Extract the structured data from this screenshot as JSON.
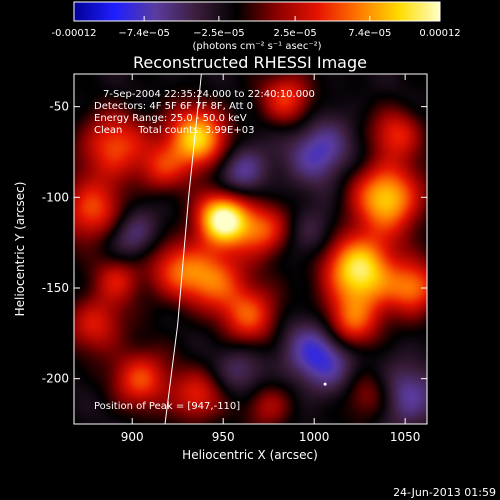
{
  "chart_data": {
    "type": "heatmap",
    "title": "Reconstructed RHESSI Image",
    "xlabel": "Heliocentric X (arcsec)",
    "ylabel": "Heliocentric Y (arcsec)",
    "xlim": [
      868,
      1062
    ],
    "ylim": [
      -225,
      -32
    ],
    "xticks": [
      900,
      950,
      1000,
      1050
    ],
    "yticks": [
      -50,
      -100,
      -150,
      -200
    ],
    "colorbar": {
      "min": -0.00012,
      "max": 0.00012,
      "tick_values": [
        -0.00012,
        -7.4e-05,
        -2.5e-05,
        2.5e-05,
        7.4e-05,
        0.00012
      ],
      "tick_labels": [
        "-0.00012",
        "−7.4e−05",
        "−2.5e−05",
        "2.5e−05",
        "7.4e−05",
        "0.00012"
      ],
      "units": "(photons cm⁻² s⁻¹ asec⁻²)",
      "colors": [
        "#000096",
        "#1f1fff",
        "#5a3ca0",
        "#3c1e3c",
        "#000000",
        "#8c0000",
        "#e61400",
        "#ff7800",
        "#ffdc00",
        "#ffffc8"
      ]
    },
    "annotations": [
      "7-Sep-2004 22:35:24.000 to 22:40:10.000",
      "Detectors: 4F 5F 6F 7F 8F, Att 0",
      "Energy Range: 25.0 - 50.0 keV",
      "Clean     Total counts: 3.99E+03"
    ],
    "peak_label": "Position of Peak = [947,-110]",
    "peak": {
      "x": 947,
      "y": -110
    },
    "limb": [
      [
        938,
        -32
      ],
      [
        931,
        -100
      ],
      [
        925,
        -170
      ],
      [
        918,
        -225
      ]
    ],
    "minimum": {
      "x": 1006,
      "y": -203
    },
    "sources": [
      {
        "x": 890,
        "y": -72,
        "a": 1.0,
        "r": 13
      },
      {
        "x": 878,
        "y": -108,
        "a": 1.0,
        "r": 12
      },
      {
        "x": 935,
        "y": -68,
        "a": 1.6,
        "r": 12
      },
      {
        "x": 916,
        "y": -85,
        "a": 0.6,
        "r": 9
      },
      {
        "x": 950,
        "y": -112,
        "a": 2.0,
        "r": 10
      },
      {
        "x": 925,
        "y": -140,
        "a": 0.9,
        "r": 12
      },
      {
        "x": 946,
        "y": -145,
        "a": 1.0,
        "r": 12
      },
      {
        "x": 965,
        "y": -165,
        "a": 1.0,
        "r": 11
      },
      {
        "x": 972,
        "y": -118,
        "a": 1.0,
        "r": 10
      },
      {
        "x": 1040,
        "y": -100,
        "a": 1.5,
        "r": 13
      },
      {
        "x": 1025,
        "y": -140,
        "a": 1.7,
        "r": 14
      },
      {
        "x": 1020,
        "y": -170,
        "a": 1.2,
        "r": 11
      },
      {
        "x": 1055,
        "y": -150,
        "a": 1.1,
        "r": 10
      },
      {
        "x": 985,
        "y": -45,
        "a": 0.9,
        "r": 10
      },
      {
        "x": 1045,
        "y": -65,
        "a": 0.8,
        "r": 10
      },
      {
        "x": 880,
        "y": -170,
        "a": 0.8,
        "r": 11
      },
      {
        "x": 905,
        "y": -200,
        "a": 1.0,
        "r": 11
      },
      {
        "x": 892,
        "y": -145,
        "a": 0.7,
        "r": 9
      },
      {
        "x": 935,
        "y": -210,
        "a": 0.8,
        "r": 10
      },
      {
        "x": 975,
        "y": -215,
        "a": 0.6,
        "r": 9
      },
      {
        "x": 1030,
        "y": -210,
        "a": 0.6,
        "r": 10
      },
      {
        "x": 1003,
        "y": -75,
        "a": -0.8,
        "r": 12
      },
      {
        "x": 960,
        "y": -85,
        "a": -0.7,
        "r": 10
      },
      {
        "x": 1005,
        "y": -185,
        "a": -1.0,
        "r": 14
      },
      {
        "x": 900,
        "y": -120,
        "a": -0.6,
        "r": 10
      },
      {
        "x": 1050,
        "y": -210,
        "a": -0.7,
        "r": 12
      },
      {
        "x": 960,
        "y": -195,
        "a": -0.4,
        "r": 10
      },
      {
        "x": 1000,
        "y": -120,
        "a": -0.4,
        "r": 10
      }
    ]
  },
  "footer": {
    "timestamp": "24-Jun-2013 01:59"
  }
}
